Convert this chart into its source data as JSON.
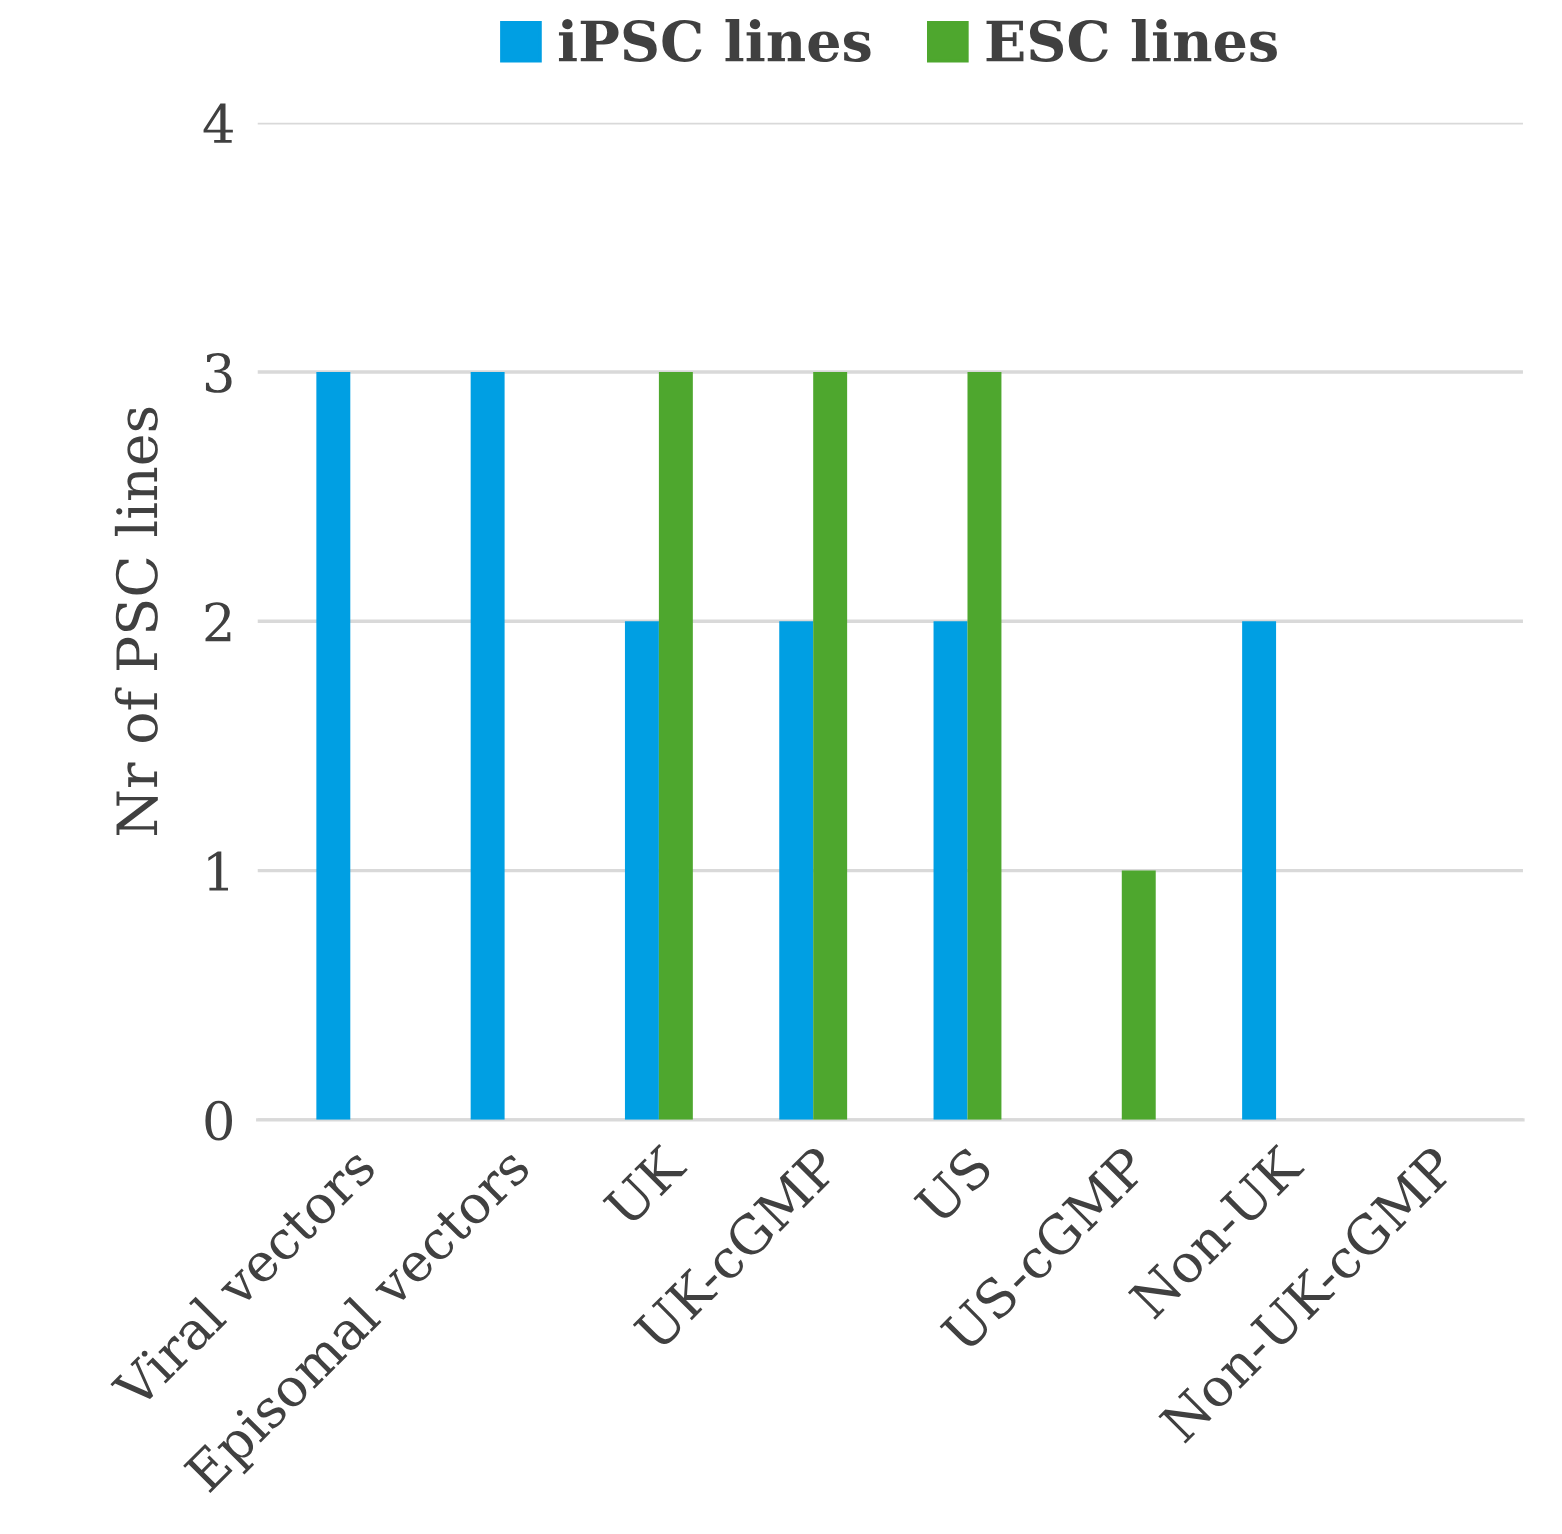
{
  "chart_data": {
    "type": "bar",
    "ylabel": "Nr of PSC lines",
    "categories": [
      "Viral vectors",
      "Episomal vectors",
      "UK",
      "UK-cGMP",
      "US",
      "US-cGMP",
      "Non-UK",
      "Non-UK-cGMP"
    ],
    "series": [
      {
        "name": "iPSC lines",
        "color": "#009fe3",
        "values": [
          3,
          3,
          2,
          2,
          2,
          0,
          2,
          0
        ]
      },
      {
        "name": "ESC lines",
        "color": "#4ea72e",
        "values": [
          0,
          0,
          3,
          3,
          3,
          1,
          0,
          0
        ]
      }
    ],
    "ylim": [
      0,
      4
    ],
    "yticks": [
      0,
      1,
      2,
      3,
      4
    ],
    "grid": "y",
    "legend": "top"
  }
}
